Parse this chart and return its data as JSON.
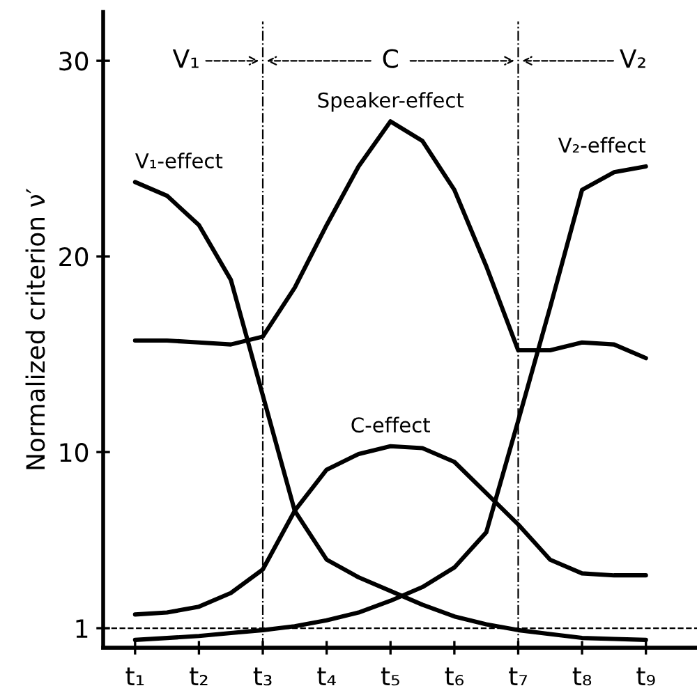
{
  "chart_data": {
    "type": "line",
    "ylabel": "Normalized criterion ν′",
    "ylim": [
      0,
      32.5
    ],
    "categories": [
      "t₁",
      null,
      "t₂",
      null,
      "t₃",
      null,
      "t₄",
      null,
      "t₅",
      null,
      "t₆",
      null,
      "t₇",
      null,
      "t₈",
      null,
      "t₉"
    ],
    "yticks": [
      1,
      10,
      20,
      30
    ],
    "grid": false,
    "legend": false,
    "marker": "none",
    "line_style": "solid",
    "series": [
      {
        "name": "V₁-effect",
        "color": "#000000",
        "values": [
          23.8,
          23.1,
          21.6,
          18.8,
          12.9,
          7.0,
          4.5,
          3.6,
          2.9,
          2.2,
          1.6,
          1.2,
          0.9,
          0.7,
          0.5,
          0.45,
          0.4
        ]
      },
      {
        "name": "Speaker-effect",
        "color": "#000000",
        "values": [
          15.7,
          15.7,
          15.6,
          15.5,
          15.9,
          18.4,
          21.6,
          24.6,
          26.9,
          25.9,
          23.4,
          19.5,
          15.2,
          15.2,
          15.6,
          15.5,
          14.8
        ]
      },
      {
        "name": "C-effect",
        "color": "#000000",
        "values": [
          1.7,
          1.8,
          2.1,
          2.8,
          4.0,
          7.0,
          9.1,
          9.9,
          10.3,
          10.2,
          9.5,
          7.9,
          6.3,
          4.5,
          3.8,
          3.7,
          3.7
        ]
      },
      {
        "name": "V₂-effect",
        "color": "#000000",
        "values": [
          0.4,
          0.5,
          0.6,
          0.75,
          0.9,
          1.1,
          1.4,
          1.8,
          2.4,
          3.1,
          4.1,
          5.9,
          11.6,
          17.4,
          23.4,
          24.3,
          24.6
        ]
      }
    ],
    "ref_lines": [
      {
        "axis": "x",
        "value": "t₃",
        "line_style": "dashdot"
      },
      {
        "axis": "x",
        "value": "t₇",
        "line_style": "dashdot"
      },
      {
        "axis": "y",
        "value": 1,
        "line_style": "dashed"
      }
    ],
    "annotations": [
      "V₁",
      "C",
      "V₂"
    ]
  }
}
